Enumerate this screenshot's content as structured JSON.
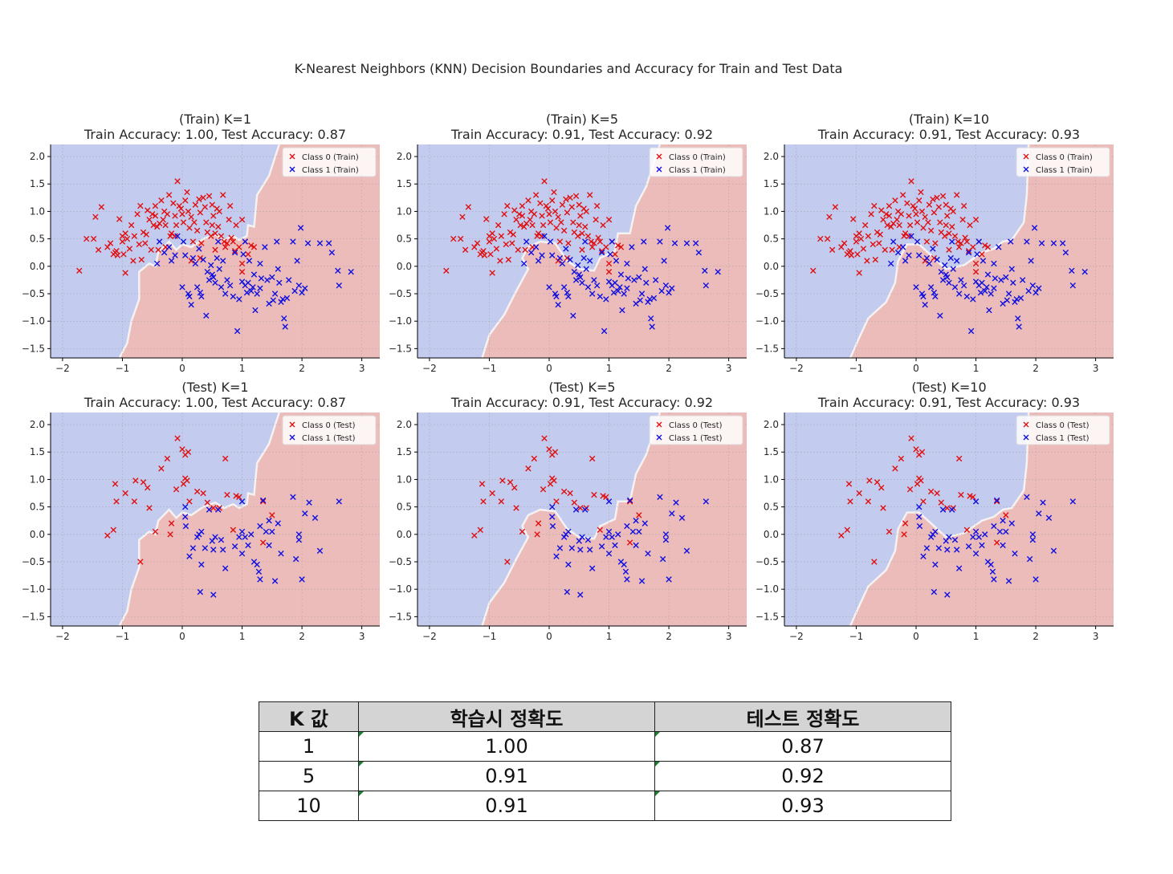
{
  "title": "K-Nearest Neighbors (KNN) Decision Boundaries and Accuracy for Train and Test Data",
  "colors": {
    "class0": "#e01010",
    "class1": "#1010e0",
    "region0": "#c3cbef",
    "region1": "#ecbcbb",
    "boundary": "#f5f2f2"
  },
  "chart_data": [
    {
      "type": "scatter",
      "title": "(Train) K=1",
      "subtitle": "Train Accuracy: 1.00, Test Accuracy: 0.87",
      "k": 1,
      "split": "Train",
      "xlim": [
        -2.2,
        3.3
      ],
      "ylim": [
        -1.67,
        2.22
      ],
      "xticks": [
        -2,
        -1,
        0,
        1,
        2,
        3
      ],
      "yticks": [
        -1.5,
        -1.0,
        -0.5,
        0.0,
        0.5,
        1.0,
        1.5,
        2.0
      ],
      "grid": true,
      "legend": "top-right",
      "legend_entries": [
        "Class 0 (Train)",
        "Class 1 (Train)"
      ]
    },
    {
      "type": "scatter",
      "title": "(Train) K=5",
      "subtitle": "Train Accuracy: 0.91, Test Accuracy: 0.92",
      "k": 5,
      "split": "Train",
      "xlim": [
        -2.2,
        3.3
      ],
      "ylim": [
        -1.67,
        2.22
      ],
      "xticks": [
        -2,
        -1,
        0,
        1,
        2,
        3
      ],
      "yticks": [
        -1.5,
        -1.0,
        -0.5,
        0.0,
        0.5,
        1.0,
        1.5,
        2.0
      ],
      "grid": true,
      "legend": "top-right",
      "legend_entries": [
        "Class 0 (Train)",
        "Class 1 (Train)"
      ]
    },
    {
      "type": "scatter",
      "title": "(Train) K=10",
      "subtitle": "Train Accuracy: 0.91, Test Accuracy: 0.93",
      "k": 10,
      "split": "Train",
      "xlim": [
        -2.2,
        3.3
      ],
      "ylim": [
        -1.67,
        2.22
      ],
      "xticks": [
        -2,
        -1,
        0,
        1,
        2,
        3
      ],
      "yticks": [
        -1.5,
        -1.0,
        -0.5,
        0.0,
        0.5,
        1.0,
        1.5,
        2.0
      ],
      "grid": true,
      "legend": "top-right",
      "legend_entries": [
        "Class 0 (Train)",
        "Class 1 (Train)"
      ]
    },
    {
      "type": "scatter",
      "title": "(Test) K=1",
      "subtitle": "Train Accuracy: 1.00, Test Accuracy: 0.87",
      "k": 1,
      "split": "Test",
      "xlim": [
        -2.2,
        3.3
      ],
      "ylim": [
        -1.67,
        2.22
      ],
      "xticks": [
        -2,
        -1,
        0,
        1,
        2,
        3
      ],
      "yticks": [
        -1.5,
        -1.0,
        -0.5,
        0.0,
        0.5,
        1.0,
        1.5,
        2.0
      ],
      "grid": true,
      "legend": "top-right",
      "legend_entries": [
        "Class 0 (Test)",
        "Class 1 (Test)"
      ]
    },
    {
      "type": "scatter",
      "title": "(Test) K=5",
      "subtitle": "Train Accuracy: 0.91, Test Accuracy: 0.92",
      "k": 5,
      "split": "Test",
      "xlim": [
        -2.2,
        3.3
      ],
      "ylim": [
        -1.67,
        2.22
      ],
      "xticks": [
        -2,
        -1,
        0,
        1,
        2,
        3
      ],
      "yticks": [
        -1.5,
        -1.0,
        -0.5,
        0.0,
        0.5,
        1.0,
        1.5,
        2.0
      ],
      "grid": true,
      "legend": "top-right",
      "legend_entries": [
        "Class 0 (Test)",
        "Class 1 (Test)"
      ]
    },
    {
      "type": "scatter",
      "title": "(Test) K=10",
      "subtitle": "Train Accuracy: 0.91, Test Accuracy: 0.93",
      "k": 10,
      "split": "Test",
      "xlim": [
        -2.2,
        3.3
      ],
      "ylim": [
        -1.67,
        2.22
      ],
      "xticks": [
        -2,
        -1,
        0,
        1,
        2,
        3
      ],
      "yticks": [
        -1.5,
        -1.0,
        -0.5,
        0.0,
        0.5,
        1.0,
        1.5,
        2.0
      ],
      "grid": true,
      "legend": "top-right",
      "legend_entries": [
        "Class 0 (Test)",
        "Class 1 (Test)"
      ]
    }
  ],
  "points": {
    "train_class0": [
      [
        -1.72,
        -0.08
      ],
      [
        -1.6,
        0.5
      ],
      [
        -1.48,
        0.5
      ],
      [
        -1.45,
        0.9
      ],
      [
        -1.4,
        0.3
      ],
      [
        -1.35,
        1.08
      ],
      [
        -1.2,
        0.42
      ],
      [
        -1.15,
        0.22
      ],
      [
        -1.12,
        0.25
      ],
      [
        -1.1,
        0.28
      ],
      [
        -1.08,
        0.2
      ],
      [
        -1.05,
        0.86
      ],
      [
        -1.0,
        0.55
      ],
      [
        -1.0,
        0.45
      ],
      [
        -0.98,
        0.22
      ],
      [
        -0.95,
        0.6
      ],
      [
        -0.92,
        0.5
      ],
      [
        -0.85,
        0.75
      ],
      [
        -0.82,
        0.1
      ],
      [
        -0.75,
        0.95
      ],
      [
        -0.72,
        0.4
      ],
      [
        -0.7,
        1.1
      ],
      [
        -0.68,
        0.12
      ],
      [
        -0.65,
        0.62
      ],
      [
        -0.6,
        0.58
      ],
      [
        -0.58,
        1.02
      ],
      [
        -0.55,
        0.85
      ],
      [
        -0.52,
        0.3
      ],
      [
        -0.5,
        0.95
      ],
      [
        -0.48,
        0.75
      ],
      [
        -0.45,
        0.92
      ],
      [
        -0.42,
        0.72
      ],
      [
        -0.4,
        0.3
      ],
      [
        -0.38,
        0.78
      ],
      [
        -0.35,
        1.2
      ],
      [
        -0.32,
        0.85
      ],
      [
        -0.3,
        1.0
      ],
      [
        -0.28,
        0.75
      ],
      [
        -0.25,
        0.95
      ],
      [
        -0.22,
        1.3
      ],
      [
        -0.2,
        0.55
      ],
      [
        -0.18,
        0.6
      ],
      [
        -0.15,
        1.15
      ],
      [
        -0.12,
        0.92
      ],
      [
        -0.1,
        0.75
      ],
      [
        -0.08,
        1.55
      ],
      [
        -0.05,
        1.1
      ],
      [
        -0.02,
        1.05
      ],
      [
        0.0,
        0.95
      ],
      [
        0.02,
        0.8
      ],
      [
        0.05,
        1.2
      ],
      [
        0.08,
        1.35
      ],
      [
        0.1,
        1.0
      ],
      [
        0.12,
        0.7
      ],
      [
        0.15,
        0.9
      ],
      [
        0.18,
        0.45
      ],
      [
        0.2,
        0.8
      ],
      [
        0.22,
        1.12
      ],
      [
        0.25,
        0.65
      ],
      [
        0.28,
        1.22
      ],
      [
        0.3,
        0.98
      ],
      [
        0.32,
        0.42
      ],
      [
        0.35,
        1.25
      ],
      [
        0.38,
        1.08
      ],
      [
        0.4,
        0.8
      ],
      [
        0.42,
        0.62
      ],
      [
        0.45,
        1.28
      ],
      [
        0.48,
        0.55
      ],
      [
        0.5,
        0.75
      ],
      [
        0.52,
        0.92
      ],
      [
        0.55,
        0.6
      ],
      [
        0.58,
        1.05
      ],
      [
        0.6,
        0.72
      ],
      [
        0.62,
        1.0
      ],
      [
        0.65,
        0.55
      ],
      [
        0.68,
        1.3
      ],
      [
        0.7,
        0.45
      ],
      [
        0.72,
        0.35
      ],
      [
        0.75,
        0.42
      ],
      [
        0.78,
        0.85
      ],
      [
        0.8,
        1.1
      ],
      [
        0.82,
        0.52
      ],
      [
        0.85,
        0.45
      ],
      [
        0.88,
        0.28
      ],
      [
        0.9,
        0.75
      ],
      [
        0.95,
        0.35
      ],
      [
        1.0,
        0.05
      ],
      [
        1.05,
        0.45
      ],
      [
        1.1,
        0.22
      ],
      [
        1.15,
        0.38
      ],
      [
        -1.25,
        0.35
      ],
      [
        -0.88,
        0.32
      ],
      [
        -0.62,
        0.42
      ],
      [
        -0.28,
        0.35
      ],
      [
        0.15,
        0.1
      ],
      [
        0.5,
        1.12
      ],
      [
        1.0,
        -0.1
      ],
      [
        -0.45,
        1.1
      ],
      [
        -0.12,
        0.55
      ],
      [
        0.3,
        0.15
      ],
      [
        -0.95,
        -0.12
      ],
      [
        1.2,
        0.35
      ],
      [
        0.55,
        0.3
      ],
      [
        -0.8,
        0.55
      ],
      [
        1.0,
        0.85
      ]
    ],
    "train_class1": [
      [
        -0.42,
        0.05
      ],
      [
        -0.38,
        0.45
      ],
      [
        -0.3,
        0.25
      ],
      [
        -0.22,
        0.35
      ],
      [
        -0.18,
        0.1
      ],
      [
        -0.12,
        0.2
      ],
      [
        -0.08,
        0.55
      ],
      [
        0.0,
        -0.38
      ],
      [
        0.02,
        0.45
      ],
      [
        0.05,
        0.2
      ],
      [
        0.1,
        -0.5
      ],
      [
        0.12,
        -0.55
      ],
      [
        0.15,
        -0.7
      ],
      [
        0.18,
        0.15
      ],
      [
        0.22,
        0.05
      ],
      [
        0.25,
        -0.38
      ],
      [
        0.28,
        0.32
      ],
      [
        0.3,
        -0.48
      ],
      [
        0.32,
        -0.55
      ],
      [
        0.35,
        0.12
      ],
      [
        0.4,
        -0.9
      ],
      [
        0.42,
        -0.1
      ],
      [
        0.45,
        -0.25
      ],
      [
        0.48,
        0.02
      ],
      [
        0.5,
        -0.15
      ],
      [
        0.52,
        -0.2
      ],
      [
        0.55,
        -0.3
      ],
      [
        0.58,
        0.15
      ],
      [
        0.62,
        -0.05
      ],
      [
        0.65,
        -0.38
      ],
      [
        0.68,
        0.1
      ],
      [
        0.72,
        -0.5
      ],
      [
        0.75,
        -0.25
      ],
      [
        0.8,
        -0.35
      ],
      [
        0.85,
        -0.55
      ],
      [
        0.88,
        0.25
      ],
      [
        0.92,
        -1.18
      ],
      [
        0.95,
        -0.6
      ],
      [
        1.0,
        -0.28
      ],
      [
        1.02,
        0.22
      ],
      [
        1.05,
        -0.35
      ],
      [
        1.08,
        -0.48
      ],
      [
        1.1,
        -0.3
      ],
      [
        1.12,
        0.1
      ],
      [
        1.15,
        -0.45
      ],
      [
        1.18,
        -0.38
      ],
      [
        1.2,
        -0.15
      ],
      [
        1.22,
        -0.8
      ],
      [
        1.25,
        -0.5
      ],
      [
        1.3,
        0.05
      ],
      [
        1.32,
        -0.22
      ],
      [
        1.38,
        0.35
      ],
      [
        1.42,
        -0.25
      ],
      [
        1.45,
        -0.68
      ],
      [
        1.5,
        -0.2
      ],
      [
        1.52,
        -0.62
      ],
      [
        1.55,
        -0.5
      ],
      [
        1.58,
        0.45
      ],
      [
        1.6,
        -0.05
      ],
      [
        1.62,
        -0.3
      ],
      [
        1.65,
        -0.65
      ],
      [
        1.68,
        -0.6
      ],
      [
        1.7,
        -0.95
      ],
      [
        1.72,
        -1.1
      ],
      [
        1.75,
        -0.58
      ],
      [
        1.78,
        -0.25
      ],
      [
        1.85,
        0.45
      ],
      [
        1.88,
        -0.45
      ],
      [
        1.92,
        0.1
      ],
      [
        1.95,
        -0.35
      ],
      [
        1.98,
        0.7
      ],
      [
        2.0,
        -0.48
      ],
      [
        2.05,
        -0.4
      ],
      [
        2.1,
        0.42
      ],
      [
        2.3,
        0.42
      ],
      [
        2.45,
        0.42
      ],
      [
        2.5,
        0.25
      ],
      [
        2.6,
        -0.08
      ],
      [
        2.62,
        -0.35
      ],
      [
        2.82,
        -0.1
      ],
      [
        1.3,
        -0.4
      ],
      [
        0.6,
        0.45
      ],
      [
        1.05,
        0.45
      ]
    ],
    "test_class0": [
      [
        -1.25,
        -0.02
      ],
      [
        -1.15,
        0.08
      ],
      [
        -1.12,
        0.92
      ],
      [
        -1.1,
        0.6
      ],
      [
        -0.95,
        0.75
      ],
      [
        -0.8,
        0.6
      ],
      [
        -0.78,
        0.98
      ],
      [
        -0.7,
        -0.5
      ],
      [
        -0.65,
        0.95
      ],
      [
        -0.58,
        0.85
      ],
      [
        -0.55,
        0.48
      ],
      [
        -0.45,
        0.05
      ],
      [
        -0.35,
        1.2
      ],
      [
        -0.25,
        1.38
      ],
      [
        -0.18,
        0.2
      ],
      [
        -0.1,
        0.82
      ],
      [
        -0.08,
        1.75
      ],
      [
        0.0,
        1.55
      ],
      [
        0.02,
        0.92
      ],
      [
        0.05,
        1.02
      ],
      [
        0.05,
        1.45
      ],
      [
        0.08,
        0.98
      ],
      [
        0.1,
        1.5
      ],
      [
        0.12,
        0.6
      ],
      [
        0.25,
        0.78
      ],
      [
        0.35,
        0.75
      ],
      [
        0.42,
        0.58
      ],
      [
        0.62,
        0.48
      ],
      [
        0.72,
        1.38
      ],
      [
        0.75,
        0.72
      ],
      [
        0.85,
        0.08
      ],
      [
        0.9,
        0.7
      ],
      [
        0.95,
        0.68
      ],
      [
        1.35,
        -0.15
      ],
      [
        1.5,
        0.35
      ],
      [
        0.52,
        0.48
      ],
      [
        1.35,
        0.6
      ],
      [
        -0.2,
        0.0
      ]
    ],
    "test_class1": [
      [
        0.05,
        0.5
      ],
      [
        0.05,
        0.32
      ],
      [
        0.06,
        0.15
      ],
      [
        0.12,
        -0.4
      ],
      [
        0.18,
        -0.25
      ],
      [
        0.25,
        -0.05
      ],
      [
        0.28,
        0.0
      ],
      [
        0.32,
        -0.55
      ],
      [
        0.32,
        0.05
      ],
      [
        0.38,
        -0.25
      ],
      [
        0.45,
        0.45
      ],
      [
        0.5,
        -0.12
      ],
      [
        0.52,
        -0.28
      ],
      [
        0.55,
        -0.05
      ],
      [
        0.6,
        0.45
      ],
      [
        0.65,
        -0.1
      ],
      [
        0.68,
        -0.28
      ],
      [
        0.72,
        -0.62
      ],
      [
        0.88,
        -0.22
      ],
      [
        0.95,
        -0.05
      ],
      [
        1.0,
        -0.35
      ],
      [
        1.0,
        0.6
      ],
      [
        1.05,
        -0.05
      ],
      [
        1.1,
        -0.2
      ],
      [
        1.15,
        0.0
      ],
      [
        1.2,
        -0.5
      ],
      [
        1.25,
        -0.55
      ],
      [
        1.28,
        -0.68
      ],
      [
        1.3,
        -0.82
      ],
      [
        1.35,
        0.62
      ],
      [
        1.4,
        0.05
      ],
      [
        1.45,
        -0.2
      ],
      [
        1.5,
        0.05
      ],
      [
        1.55,
        -0.85
      ],
      [
        1.6,
        0.2
      ],
      [
        1.65,
        -0.35
      ],
      [
        1.85,
        0.68
      ],
      [
        1.9,
        -0.45
      ],
      [
        1.95,
        0.0
      ],
      [
        2.0,
        -0.82
      ],
      [
        2.05,
        0.38
      ],
      [
        2.12,
        0.58
      ],
      [
        2.22,
        0.3
      ],
      [
        2.3,
        -0.3
      ],
      [
        2.62,
        0.6
      ],
      [
        0.3,
        -1.05
      ],
      [
        0.52,
        -1.1
      ],
      [
        1.0,
        0.05
      ],
      [
        1.3,
        0.15
      ],
      [
        1.95,
        -0.1
      ],
      [
        1.45,
        0.25
      ]
    ]
  },
  "boundaries": {
    "k1": [
      [
        -1.05,
        -1.67
      ],
      [
        -0.92,
        -1.4
      ],
      [
        -0.85,
        -1.0
      ],
      [
        -0.72,
        -0.6
      ],
      [
        -0.72,
        -0.1
      ],
      [
        -0.55,
        0.05
      ],
      [
        -0.45,
        0.0
      ],
      [
        -0.4,
        0.25
      ],
      [
        -0.22,
        0.45
      ],
      [
        -0.1,
        0.3
      ],
      [
        0.0,
        0.4
      ],
      [
        0.15,
        0.35
      ],
      [
        0.35,
        0.5
      ],
      [
        0.55,
        0.58
      ],
      [
        0.7,
        0.48
      ],
      [
        0.85,
        0.55
      ],
      [
        0.95,
        0.48
      ],
      [
        1.08,
        0.55
      ],
      [
        1.1,
        0.75
      ],
      [
        1.2,
        0.72
      ],
      [
        1.25,
        1.3
      ],
      [
        1.45,
        1.65
      ],
      [
        1.62,
        2.22
      ]
    ],
    "k5": [
      [
        -1.12,
        -1.67
      ],
      [
        -1.0,
        -1.25
      ],
      [
        -0.75,
        -0.88
      ],
      [
        -0.55,
        -0.45
      ],
      [
        -0.35,
        -0.05
      ],
      [
        -0.45,
        0.15
      ],
      [
        -0.35,
        0.35
      ],
      [
        -0.15,
        0.45
      ],
      [
        0.1,
        0.42
      ],
      [
        0.3,
        0.1
      ],
      [
        0.5,
        -0.05
      ],
      [
        0.75,
        -0.08
      ],
      [
        0.85,
        0.15
      ],
      [
        1.1,
        0.28
      ],
      [
        1.15,
        0.6
      ],
      [
        1.35,
        0.6
      ],
      [
        1.45,
        1.1
      ],
      [
        1.62,
        1.45
      ],
      [
        1.85,
        2.22
      ]
    ],
    "k10": [
      [
        -1.1,
        -1.67
      ],
      [
        -0.95,
        -1.3
      ],
      [
        -0.8,
        -0.95
      ],
      [
        -0.5,
        -0.65
      ],
      [
        -0.35,
        -0.3
      ],
      [
        -0.3,
        0.1
      ],
      [
        -0.15,
        0.4
      ],
      [
        0.05,
        0.4
      ],
      [
        0.3,
        0.15
      ],
      [
        0.5,
        -0.05
      ],
      [
        0.8,
        0.02
      ],
      [
        1.1,
        0.25
      ],
      [
        1.3,
        0.32
      ],
      [
        1.45,
        0.45
      ],
      [
        1.6,
        0.48
      ],
      [
        1.8,
        0.8
      ],
      [
        1.85,
        1.3
      ],
      [
        1.88,
        2.22
      ]
    ]
  },
  "table": {
    "headers": [
      "K 값",
      "학습시 정확도",
      "테스트 정확도"
    ],
    "rows": [
      [
        "1",
        "1.00",
        "0.87"
      ],
      [
        "5",
        "0.91",
        "0.92"
      ],
      [
        "10",
        "0.91",
        "0.93"
      ]
    ]
  }
}
